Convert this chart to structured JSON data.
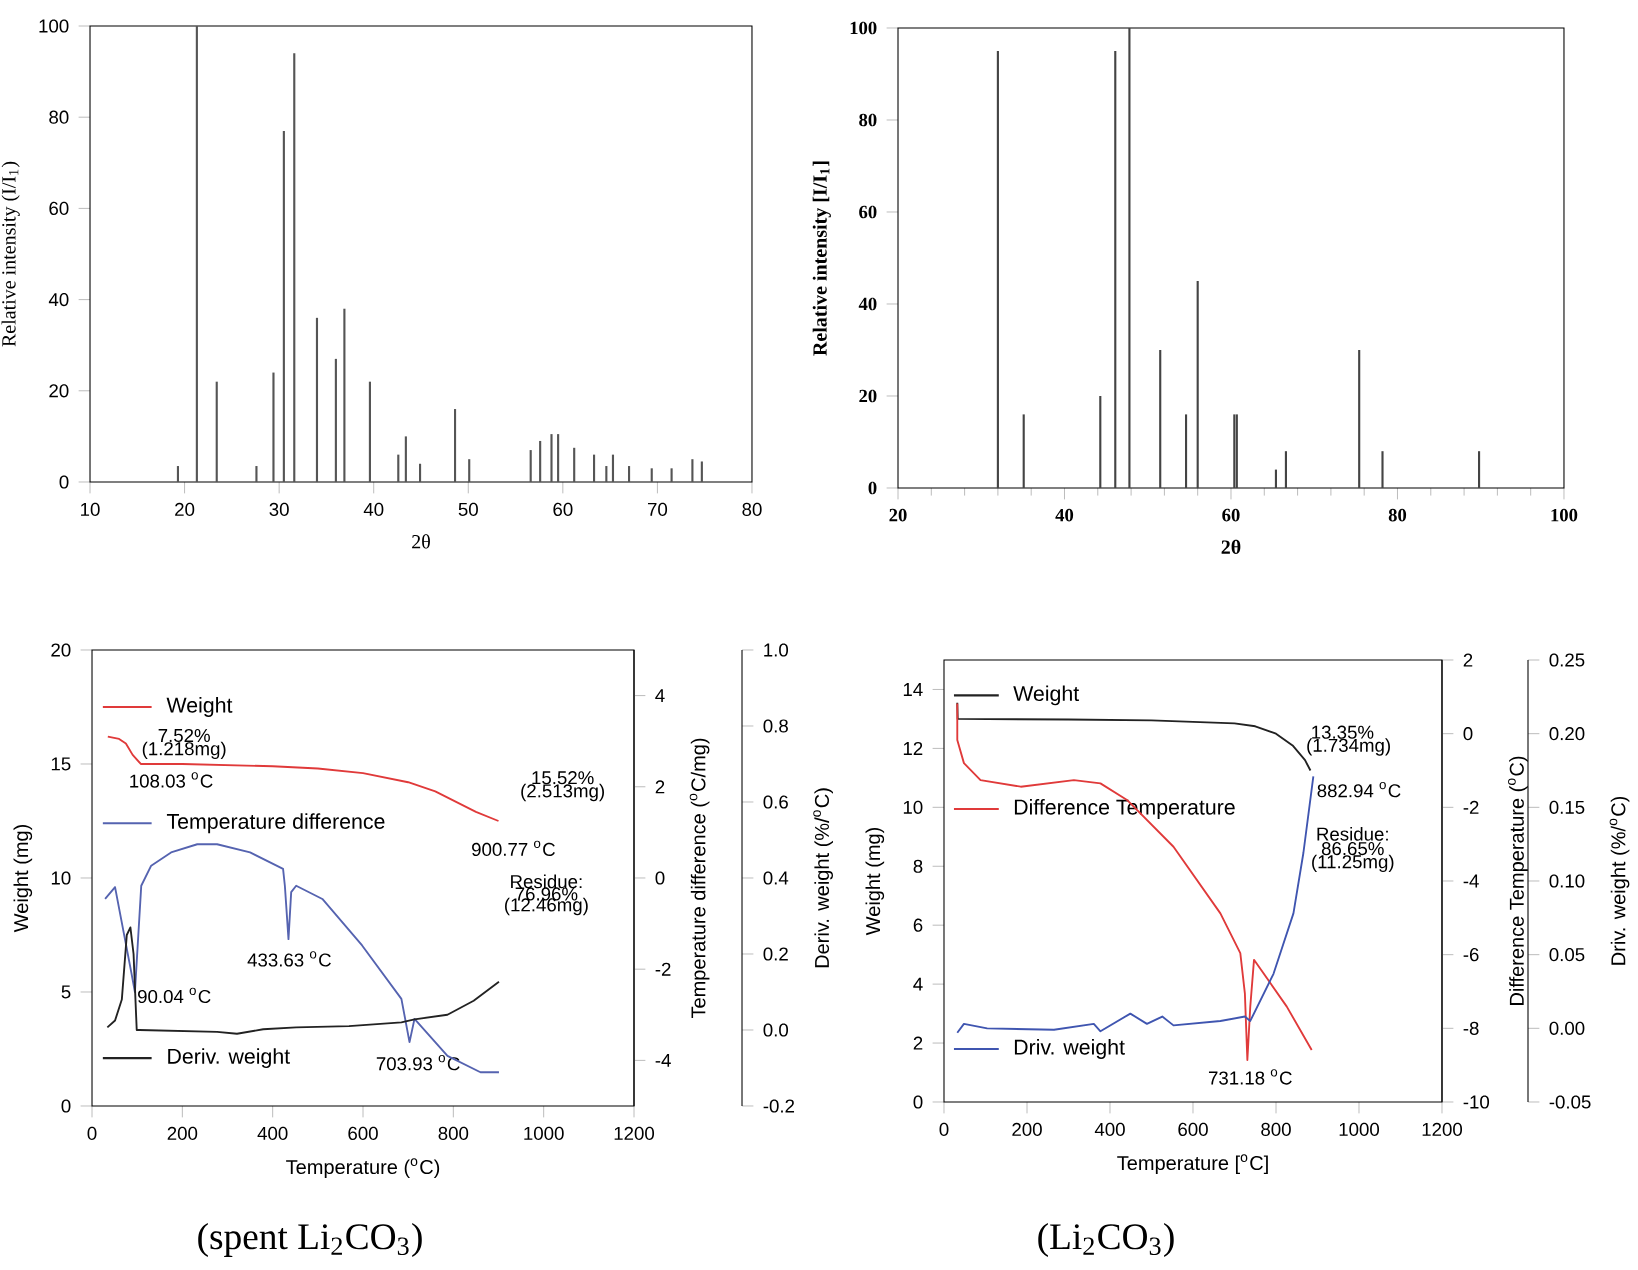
{
  "chart_data": [
    {
      "type": "bar",
      "xlabel": "2θ",
      "ylabel": "Relative intensity (I/I$_{1}$)",
      "color": "#555555",
      "x": [
        19.3,
        21.3,
        23.4,
        27.6,
        29.4,
        30.5,
        31.6,
        34.0,
        36.0,
        36.9,
        39.6,
        42.6,
        43.4,
        44.9,
        48.6,
        50.1,
        56.6,
        57.6,
        58.8,
        59.5,
        61.2,
        63.3,
        64.6,
        65.3,
        67.0,
        69.4,
        71.5,
        73.7,
        74.7
      ],
      "values": [
        3.5,
        100,
        22,
        3.5,
        24,
        77,
        94,
        36,
        27,
        38,
        22,
        6,
        10,
        4,
        16,
        5,
        7,
        9,
        10.5,
        10.5,
        7.5,
        6,
        3.5,
        6,
        3.5,
        3,
        3,
        5,
        4.5
      ],
      "xlim": [
        10,
        80
      ],
      "xticks": [
        10,
        20,
        30,
        40,
        50,
        60,
        70,
        80
      ],
      "ylim": [
        0,
        100
      ],
      "yticks": [
        0,
        20,
        40,
        60,
        80,
        100
      ]
    },
    {
      "type": "bar",
      "xlabel": "2θ",
      "ylabel": "Relative intensity [I/I$_{1}$]",
      "color": "#444444",
      "x": [
        32.0,
        35.1,
        44.3,
        46.1,
        47.8,
        51.5,
        54.6,
        56.0,
        60.4,
        60.7,
        65.4,
        66.6,
        75.4,
        78.2,
        89.8
      ],
      "values": [
        95,
        16,
        20,
        95,
        100,
        30,
        16,
        45,
        16,
        16,
        4,
        8,
        30,
        8,
        8
      ],
      "xlim": [
        20,
        100
      ],
      "xticks": [
        20,
        40,
        60,
        80,
        100
      ],
      "ylim": [
        0,
        100
      ],
      "yticks": [
        0,
        20,
        40,
        60,
        80,
        100
      ]
    },
    {
      "type": "line",
      "xlabel": "Temperature ($^{o}$C)",
      "ylabel": "Weight (mg)",
      "y2label": "Temperature difference ($^{o}$C/mg)",
      "y3label": "Deriv. weight (%/$^{o}$C)",
      "legend": "left",
      "xlim": [
        0,
        1200
      ],
      "xticks": [
        0,
        200,
        400,
        600,
        800,
        1000,
        1200
      ],
      "ylim": [
        0,
        20
      ],
      "yticks": [
        0,
        5,
        10,
        15,
        20
      ],
      "y2lim": [
        -5,
        5
      ],
      "y2ticks": [
        -4,
        -2,
        0,
        2,
        4
      ],
      "y3lim": [
        -0.2,
        1.0
      ],
      "y3ticks": [
        -0.2,
        {
          "value": 0,
          "label": "0.0"
        },
        0.2,
        0.4,
        0.6,
        0.8,
        {
          "value": 1.0,
          "label": "1.0"
        }
      ],
      "series": [
        {
          "name": "Weight",
          "color": "#e03a3a",
          "x": [
            35,
            60,
            75,
            90,
            108,
            200,
            400,
            500,
            600,
            700,
            760,
            800,
            850,
            900
          ],
          "values": [
            16.2,
            16.1,
            15.9,
            15.4,
            15.0,
            15.0,
            14.9,
            14.8,
            14.6,
            14.2,
            13.8,
            13.4,
            12.9,
            12.5
          ]
        },
        {
          "name": "Temperature difference",
          "color": "#5563b0",
          "axis": "y2",
          "x": [
            29,
            51,
            87,
            95,
            109,
            131,
            175,
            233,
            277,
            350,
            423,
            427,
            435,
            441,
            452,
            510,
            598,
            685,
            703,
            714,
            787,
            860,
            901
          ],
          "values": [
            -0.46,
            -0.2,
            -2.07,
            -2.5,
            -0.17,
            0.27,
            0.56,
            0.74,
            0.74,
            0.56,
            0.2,
            -0.17,
            -1.34,
            -0.31,
            -0.17,
            -0.46,
            -1.48,
            -2.65,
            -3.6,
            -3.09,
            -3.9,
            -4.26,
            -4.26
          ]
        },
        {
          "name": "Deriv. weight",
          "color": "#222222",
          "axis": "y3",
          "x": [
            34,
            51,
            66,
            77,
            85,
            92,
            99,
            105,
            277,
            321,
            379,
            452,
            569,
            685,
            714,
            787,
            845,
            901
          ],
          "values": [
            0.007,
            0.025,
            0.08,
            0.25,
            0.27,
            0.2,
            0.0,
            0.0,
            -0.005,
            -0.01,
            0.002,
            0.007,
            0.01,
            0.02,
            0.028,
            0.04,
            0.077,
            0.127
          ]
        }
      ],
      "annotations": [
        "7.52%",
        "(1.218mg)",
        "108.03 $^{o}$C",
        "15.52%",
        "(2.513mg)",
        "900.77 $^{o}$C",
        "Residue:",
        "76.96%",
        "(12.46mg)",
        "433.63 $^{o}$C",
        "90.04 $^{o}$C",
        "703.93 $^{o}$C",
        "(spent Li$_{2}$CO$_{3}$)"
      ]
    },
    {
      "type": "line",
      "xlabel": "Temperature [$^{o}$C]",
      "ylabel": "Weight (mg)",
      "y2label": "Difference Temperature ($^{o}$C)",
      "y3label": "Driv. weight (%/$^{o}$C)",
      "legend": "left",
      "xlim": [
        0,
        1200
      ],
      "xticks": [
        0,
        200,
        400,
        600,
        800,
        1000,
        1200
      ],
      "ylim": [
        0,
        15
      ],
      "yticks": [
        0,
        2,
        4,
        6,
        8,
        10,
        12,
        14
      ],
      "y2lim": [
        -10,
        2
      ],
      "y2ticks": [
        -10,
        -8,
        -6,
        -4,
        -2,
        0,
        2
      ],
      "y3lim": [
        -0.05,
        0.25
      ],
      "y3ticks": [
        -0.05,
        {
          "value": 0,
          "label": "0.00"
        },
        0.05,
        {
          "value": 0.1,
          "label": "0.10"
        },
        0.15,
        {
          "value": 0.2,
          "label": "0.20"
        },
        0.25
      ],
      "series": [
        {
          "name": "Weight",
          "color": "#222222",
          "x": [
            32,
            33,
            300,
            500,
            600,
            700,
            750,
            800,
            840,
            870,
            883
          ],
          "values": [
            13.55,
            13.0,
            12.98,
            12.95,
            12.9,
            12.85,
            12.75,
            12.5,
            12.1,
            11.6,
            11.25
          ]
        },
        {
          "name": "Difference Temperature",
          "color": "#e03a3a",
          "axis": "y2",
          "x": [
            32,
            32,
            48,
            88,
            185,
            313,
            377,
            441,
            553,
            666,
            714,
            725,
            731,
            738,
            747,
            826,
            886
          ],
          "values": [
            0.82,
            -0.17,
            -0.8,
            -1.26,
            -1.44,
            -1.26,
            -1.35,
            -1.8,
            -3.07,
            -4.88,
            -5.96,
            -7.05,
            -8.86,
            -7.41,
            -6.14,
            -7.41,
            -8.59
          ]
        },
        {
          "name": "Driv. weight",
          "color": "#3f55b0",
          "axis": "y3",
          "x": [
            32,
            48,
            104,
            265,
            361,
            377,
            449,
            489,
            526,
            553,
            666,
            725,
            738,
            794,
            842,
            866,
            890
          ],
          "values": [
            -0.003,
            0.003,
            0.0,
            -0.001,
            0.003,
            -0.002,
            0.01,
            0.003,
            0.008,
            0.002,
            0.005,
            0.008,
            0.005,
            0.037,
            0.078,
            0.119,
            0.171
          ]
        }
      ],
      "annotations": [
        "13.35%",
        "(1.734mg)",
        "882.94 $^{o}$C",
        "Residue:",
        "86.65%",
        "(11.25mg)",
        "731.18 $^{o}$C",
        "(Li$_{2}$CO$_{3}$)"
      ]
    }
  ]
}
